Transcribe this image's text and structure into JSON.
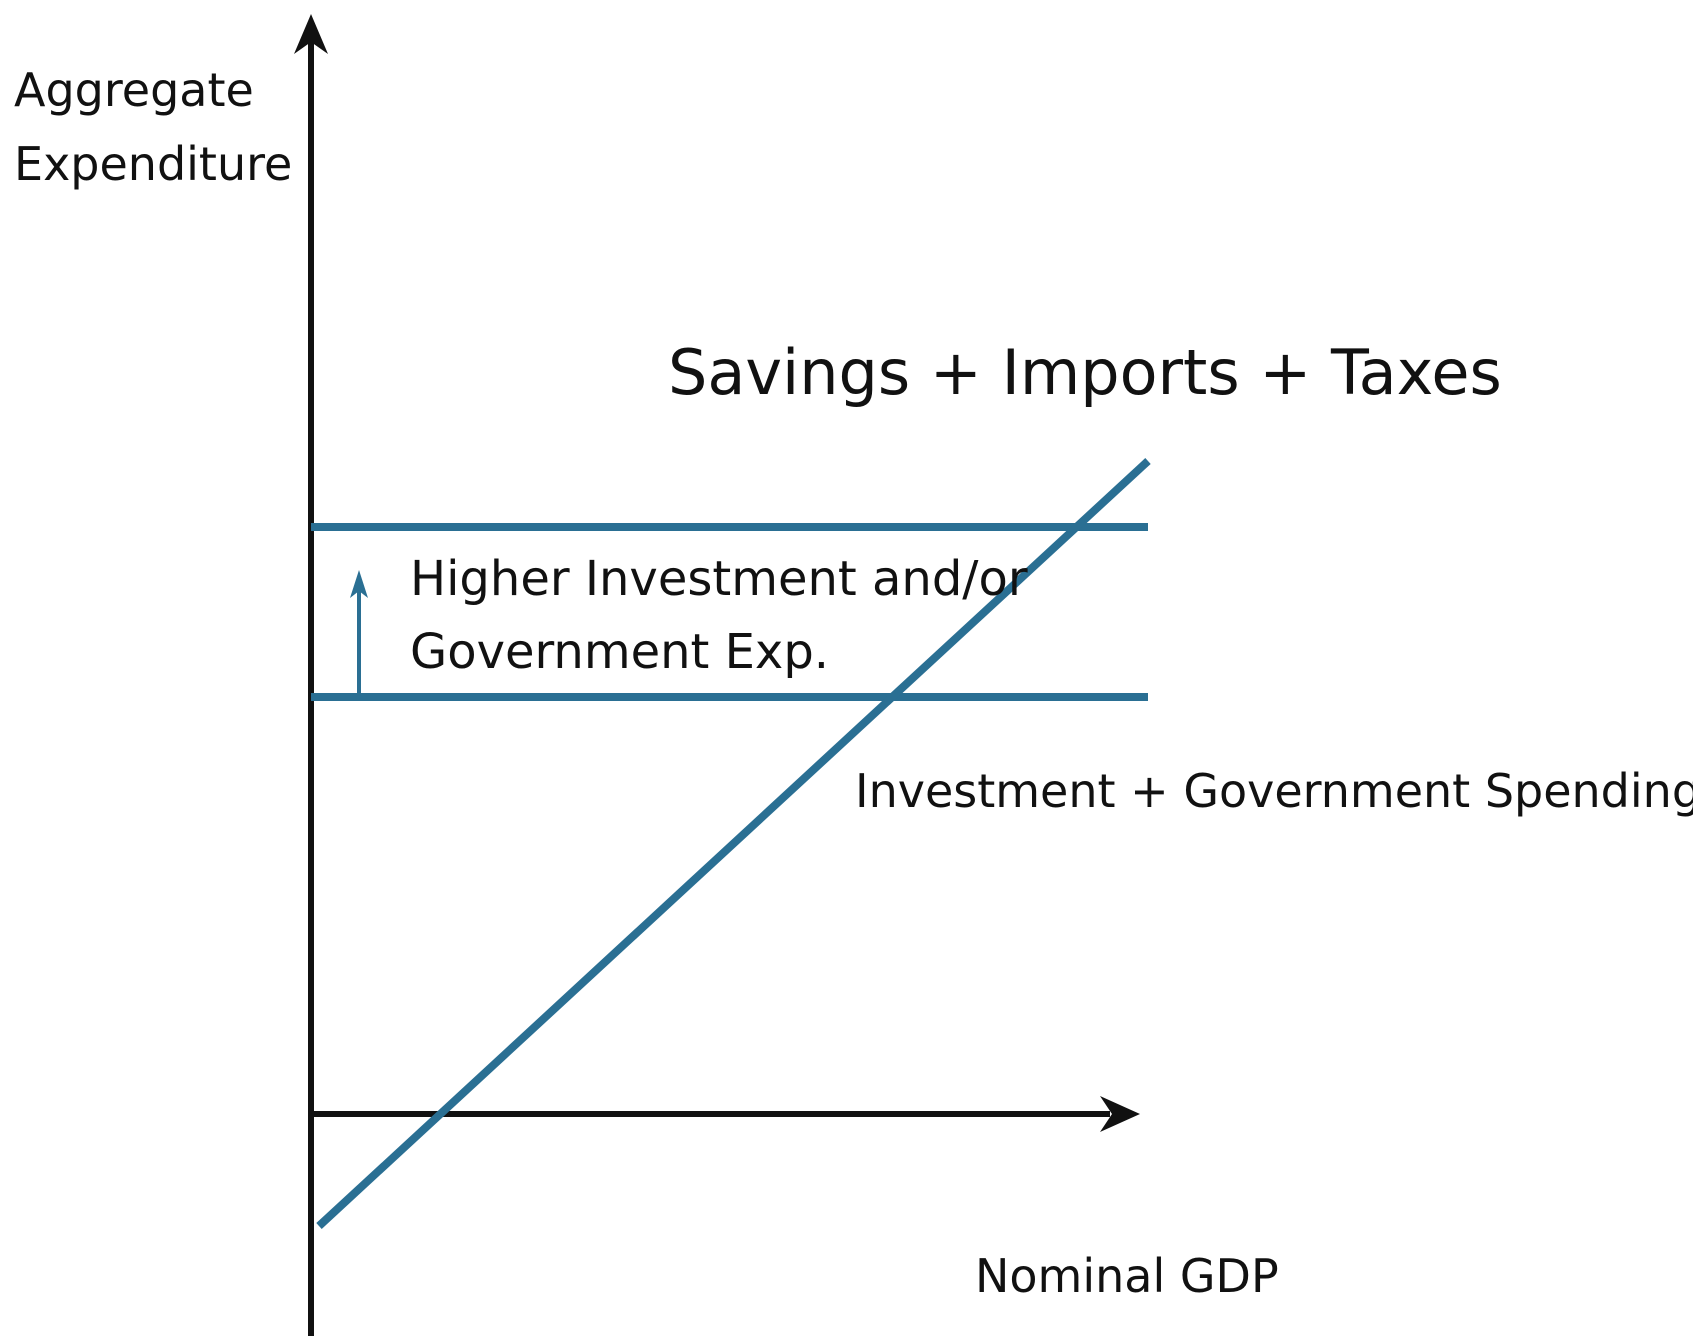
{
  "y_axis_label": {
    "line1": "Aggregate",
    "line2": "Expenditure"
  },
  "x_axis_label": "Nominal GDP",
  "upward_curve_label": "Savings + Imports + Taxes",
  "horizontal_curve_label": "Investment + Government Spending + Ex",
  "shift_label": {
    "line1": "Higher Investment and/or",
    "line2": "Government Exp."
  },
  "colors": {
    "axis": "#111111",
    "curve": "#2a6f93",
    "text": "#111111",
    "background": "#ffffff"
  },
  "icons": {
    "y_axis_arrow": "arrow-up-icon",
    "x_axis_arrow": "arrow-right-icon",
    "shift_arrow": "arrow-up-icon"
  }
}
